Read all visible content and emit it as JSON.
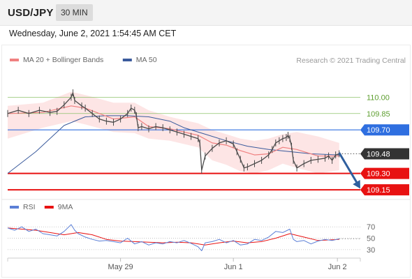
{
  "header": {
    "symbol": "USD/JPY",
    "timeframe": "30 MIN"
  },
  "timestamp": "Wednesday, June 2, 2021 1:54:45 AM CET",
  "colors": {
    "price": "#4a4a4a",
    "ma20": "#f08080",
    "bands_fill": "#fde0e0",
    "ma50": "#3a5a9c",
    "level_green": "#8dc26a",
    "level_blue": "#2f6fe0",
    "level_red": "#e81212",
    "arrow": "#2f5f9e",
    "rsi": "#5b7fd6",
    "rsi_ma": "#e81212",
    "current_tag": "#333333"
  },
  "chart_data": [
    {
      "type": "line",
      "title": "",
      "legend": [
        {
          "name": "MA 20 + Bollinger Bands",
          "color": "#f08080"
        },
        {
          "name": "MA 50",
          "color": "#3a5a9c"
        }
      ],
      "source_note": "Research © 2021 Trading Central",
      "x_ticks": [
        "May 29",
        "Jun 1",
        "Jun 2"
      ],
      "x_tick_positions": [
        32,
        64,
        93.5
      ],
      "x_range": [
        0,
        100
      ],
      "ylim": [
        109.08,
        110.22
      ],
      "y_axis_position": "right",
      "series": [
        {
          "name": "Price",
          "x": [
            0,
            3,
            6,
            9,
            12,
            14,
            16,
            18,
            18.5,
            19,
            21,
            22,
            24,
            26,
            28,
            30,
            32,
            34,
            35,
            36,
            36.5,
            37,
            38,
            40,
            42,
            44,
            46,
            48,
            50,
            52,
            54,
            54.5,
            55,
            56,
            58,
            60,
            62,
            64,
            65,
            66,
            67,
            68,
            70,
            72,
            74,
            75,
            76,
            77,
            78,
            79,
            79.5,
            80,
            80.5,
            81,
            82,
            84,
            86,
            88,
            90,
            91,
            92,
            93,
            94
          ],
          "y": [
            109.85,
            109.88,
            109.85,
            109.88,
            109.86,
            109.87,
            109.93,
            110.0,
            110.04,
            109.97,
            109.92,
            109.9,
            109.85,
            109.8,
            109.78,
            109.77,
            109.8,
            109.85,
            109.9,
            109.88,
            109.83,
            109.72,
            109.73,
            109.71,
            109.73,
            109.72,
            109.7,
            109.68,
            109.66,
            109.64,
            109.62,
            109.58,
            109.33,
            109.46,
            109.53,
            109.58,
            109.6,
            109.57,
            109.5,
            109.43,
            109.35,
            109.36,
            109.39,
            109.42,
            109.47,
            109.52,
            109.58,
            109.6,
            109.62,
            109.63,
            109.65,
            109.62,
            109.55,
            109.42,
            109.35,
            109.39,
            109.42,
            109.43,
            109.44,
            109.46,
            109.42,
            109.47,
            109.48
          ]
        },
        {
          "name": "MA 20",
          "x": [
            0,
            10,
            18,
            22,
            30,
            36,
            40,
            46,
            54,
            58,
            62,
            66,
            70,
            74,
            78,
            82,
            88,
            94
          ],
          "y": [
            109.85,
            109.86,
            109.92,
            109.9,
            109.8,
            109.82,
            109.73,
            109.71,
            109.65,
            109.58,
            109.56,
            109.51,
            109.47,
            109.48,
            109.54,
            109.52,
            109.46,
            109.46
          ]
        },
        {
          "name": "Bollinger upper",
          "x": [
            0,
            10,
            18,
            22,
            30,
            36,
            40,
            46,
            54,
            58,
            62,
            66,
            70,
            74,
            78,
            82,
            88,
            94
          ],
          "y": [
            109.92,
            109.95,
            110.05,
            110.02,
            109.95,
            109.95,
            109.88,
            109.82,
            109.76,
            109.7,
            109.66,
            109.62,
            109.6,
            109.62,
            109.66,
            109.68,
            109.64,
            109.58
          ]
        },
        {
          "name": "Bollinger lower",
          "x": [
            0,
            10,
            18,
            22,
            30,
            36,
            40,
            46,
            54,
            58,
            62,
            66,
            70,
            74,
            78,
            82,
            88,
            94
          ],
          "y": [
            109.62,
            109.72,
            109.78,
            109.75,
            109.68,
            109.67,
            109.62,
            109.6,
            109.54,
            109.42,
            109.38,
            109.32,
            109.3,
            109.33,
            109.39,
            109.35,
            109.3,
            109.33
          ]
        },
        {
          "name": "MA 50",
          "x": [
            0,
            8,
            16,
            22,
            28,
            34,
            40,
            46,
            50,
            56,
            62,
            68,
            74,
            80,
            86,
            94
          ],
          "y": [
            109.3,
            109.5,
            109.74,
            109.82,
            109.83,
            109.83,
            109.82,
            109.78,
            109.72,
            109.66,
            109.6,
            109.55,
            109.52,
            109.5,
            109.48,
            109.47
          ]
        }
      ],
      "levels": [
        {
          "value": 110.0,
          "label": "110.00",
          "style": "thin-green"
        },
        {
          "value": 109.85,
          "label": "109.85",
          "style": "thin-green"
        },
        {
          "value": 109.7,
          "label": "109.70",
          "style": "blue"
        },
        {
          "value": 109.48,
          "label": "109.48",
          "style": "current"
        },
        {
          "value": 109.3,
          "label": "109.30",
          "style": "red"
        },
        {
          "value": 109.15,
          "label": "109.15",
          "style": "red"
        }
      ],
      "forecast_arrow": {
        "from_x": 94,
        "from_y": 109.49,
        "to_x": 100,
        "to_y": 109.16
      }
    },
    {
      "type": "line",
      "title": "",
      "legend": [
        {
          "name": "RSI",
          "color": "#5b7fd6"
        },
        {
          "name": "9MA",
          "color": "#e81212"
        }
      ],
      "x_range": [
        0,
        100
      ],
      "ylim": [
        20,
        85
      ],
      "y_ticks": [
        70,
        50,
        30
      ],
      "y_tick_labels": [
        "70",
        "50",
        "30"
      ],
      "series": [
        {
          "name": "RSI",
          "x": [
            0,
            2,
            4,
            6,
            8,
            10,
            12,
            14,
            16,
            18,
            19,
            20,
            22,
            24,
            26,
            28,
            30,
            32,
            34,
            36,
            38,
            40,
            42,
            44,
            46,
            48,
            50,
            52,
            54,
            55,
            56,
            58,
            60,
            62,
            64,
            66,
            68,
            70,
            72,
            74,
            76,
            78,
            80,
            81,
            82,
            84,
            86,
            88,
            90,
            92,
            94
          ],
          "y": [
            68,
            64,
            70,
            62,
            66,
            58,
            56,
            54,
            62,
            74,
            64,
            58,
            52,
            48,
            45,
            46,
            44,
            42,
            50,
            40,
            44,
            38,
            42,
            40,
            44,
            42,
            46,
            41,
            35,
            28,
            42,
            44,
            48,
            42,
            46,
            38,
            40,
            48,
            46,
            52,
            62,
            60,
            66,
            48,
            44,
            46,
            40,
            45,
            48,
            46,
            49
          ]
        },
        {
          "name": "9MA",
          "x": [
            0,
            4,
            8,
            12,
            16,
            20,
            24,
            28,
            32,
            36,
            40,
            44,
            48,
            52,
            56,
            60,
            64,
            68,
            72,
            76,
            80,
            84,
            88,
            94
          ],
          "y": [
            68,
            66,
            64,
            60,
            56,
            60,
            56,
            48,
            45,
            44,
            43,
            42,
            43,
            42,
            38,
            42,
            45,
            42,
            44,
            50,
            58,
            52,
            46,
            48
          ]
        }
      ],
      "current_dashed_to": 100
    }
  ]
}
